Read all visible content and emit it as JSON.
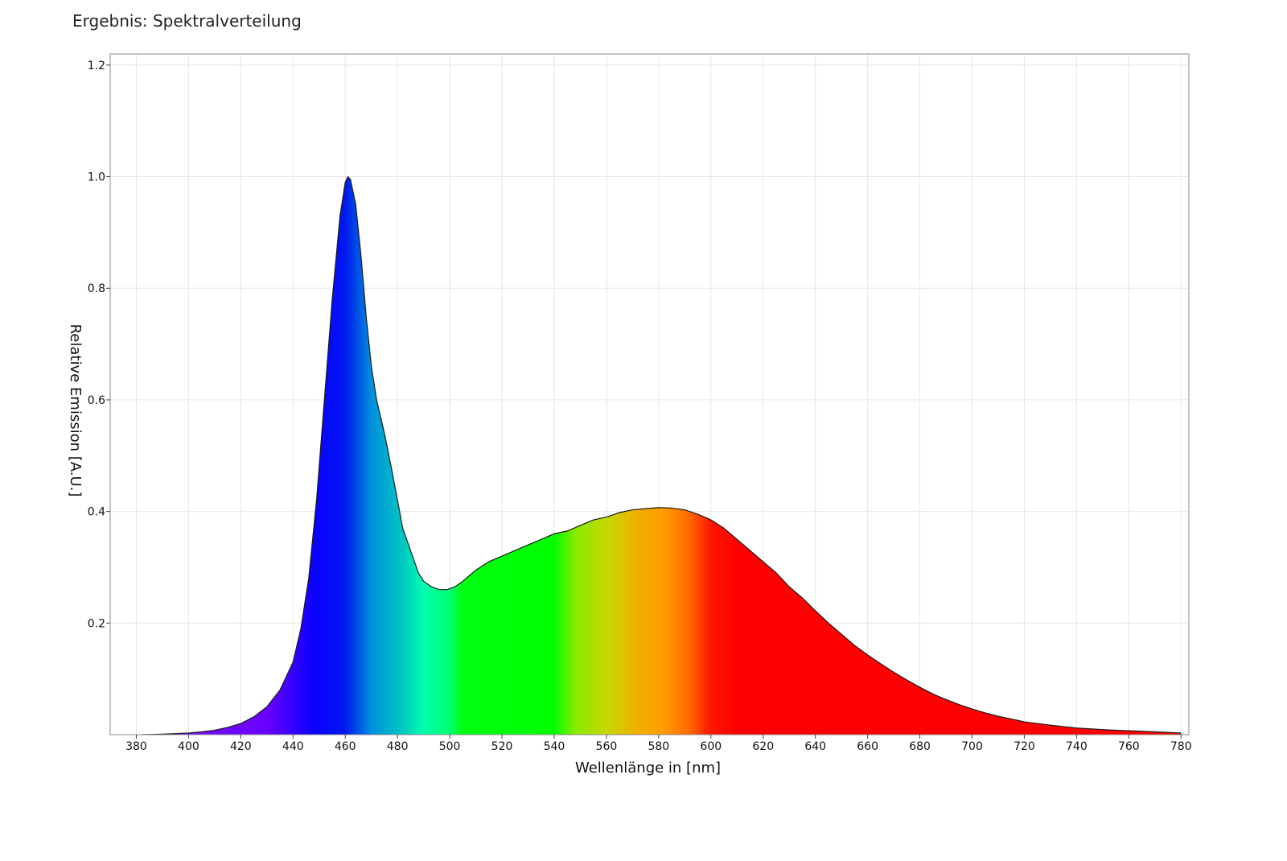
{
  "page": {
    "title": "Ergebnis: Spektralverteilung"
  },
  "chart_data": {
    "type": "area",
    "title": "",
    "xlabel": "Wellenlänge in [nm]",
    "ylabel": "Relative Emission [A.U.]",
    "xlim": [
      370,
      783
    ],
    "ylim": [
      0,
      1.22
    ],
    "grid": true,
    "x_ticks": [
      380,
      400,
      420,
      440,
      460,
      480,
      500,
      520,
      540,
      560,
      580,
      600,
      620,
      640,
      660,
      680,
      700,
      720,
      740,
      760,
      780
    ],
    "y_ticks": [
      0.2,
      0.4,
      0.6,
      0.8,
      1.0,
      1.2
    ],
    "y_tick_labels": [
      "0.2",
      "0.4",
      "0.6",
      "0.8",
      "1.0",
      "1.2"
    ],
    "fill": "visible-spectrum gradient",
    "series": [
      {
        "x": [
          382,
          390,
          400,
          405,
          410,
          415,
          420,
          425,
          430,
          435,
          440,
          443,
          446,
          449,
          452,
          455,
          458,
          460,
          461,
          462,
          464,
          466,
          468,
          470,
          472,
          475,
          478,
          480,
          482,
          485,
          488,
          490,
          493,
          496,
          499,
          502,
          505,
          510,
          515,
          520,
          525,
          530,
          535,
          540,
          545,
          550,
          555,
          560,
          565,
          570,
          575,
          580,
          585,
          590,
          595,
          600,
          605,
          610,
          615,
          620,
          625,
          630,
          635,
          640,
          645,
          650,
          655,
          660,
          665,
          670,
          675,
          680,
          685,
          690,
          695,
          700,
          705,
          710,
          715,
          720,
          730,
          740,
          750,
          760,
          770,
          780
        ],
        "y": [
          0.0,
          0.001,
          0.003,
          0.005,
          0.008,
          0.013,
          0.02,
          0.032,
          0.05,
          0.08,
          0.13,
          0.19,
          0.28,
          0.42,
          0.6,
          0.78,
          0.93,
          0.99,
          1.0,
          0.995,
          0.95,
          0.86,
          0.75,
          0.66,
          0.6,
          0.54,
          0.47,
          0.42,
          0.37,
          0.33,
          0.29,
          0.275,
          0.265,
          0.26,
          0.26,
          0.265,
          0.275,
          0.295,
          0.31,
          0.32,
          0.33,
          0.34,
          0.35,
          0.36,
          0.365,
          0.375,
          0.385,
          0.39,
          0.398,
          0.403,
          0.405,
          0.407,
          0.406,
          0.403,
          0.395,
          0.385,
          0.37,
          0.35,
          0.33,
          0.31,
          0.29,
          0.265,
          0.245,
          0.222,
          0.2,
          0.18,
          0.16,
          0.143,
          0.127,
          0.112,
          0.098,
          0.085,
          0.073,
          0.063,
          0.054,
          0.046,
          0.039,
          0.033,
          0.028,
          0.023,
          0.017,
          0.012,
          0.009,
          0.007,
          0.005,
          0.003
        ]
      }
    ]
  }
}
